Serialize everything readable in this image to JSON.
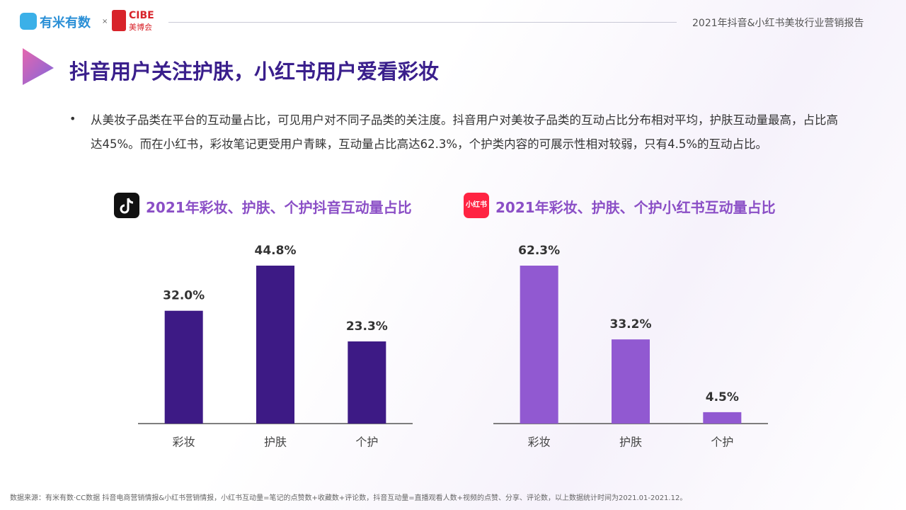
{
  "header": {
    "logo_main": "有米有数",
    "logo_x": "×",
    "logo_brand": "CIBE",
    "logo_brand_sub": "美博会",
    "report": "2021年抖音&小红书美妆行业营销报告"
  },
  "title": "抖音用户关注护肤，小红书用户爱看彩妆",
  "bullet": "从美妆子品类在平台的互动量占比，可见用户对不同子品类的关注度。抖音用户对美妆子品类的互动占比分布相对平均，护肤互动量最高，占比高达45%。而在小红书，彩妆笔记更受用户青睐，互动量占比高达62.3%，个护类内容的可展示性相对较弱，只有4.5%的互动占比。",
  "icon_label": "小红书",
  "source": "数据来源：有米有数·CC数据 抖音电商营销情报&小红书营销情报，小红书互动量=笔记的点赞数+收藏数+评论数，抖音互动量=直播观看人数+视频的点赞、分享、评论数，以上数据统计时间为2021.01-2021.12。",
  "chart_data": [
    {
      "type": "bar",
      "title": "2021年彩妆、护肤、个护抖音互动量占比",
      "categories": [
        "彩妆",
        "护肤",
        "个护"
      ],
      "values": [
        32.0,
        44.8,
        23.3
      ],
      "value_labels": [
        "32.0%",
        "44.8%",
        "23.3%"
      ],
      "color": "#3d1a85"
    },
    {
      "type": "bar",
      "title": "2021年彩妆、护肤、个护小红书互动量占比",
      "categories": [
        "彩妆",
        "护肤",
        "个护"
      ],
      "values": [
        62.3,
        33.2,
        4.5
      ],
      "value_labels": [
        "62.3%",
        "33.2%",
        "4.5%"
      ],
      "color": "#9159d1"
    }
  ]
}
